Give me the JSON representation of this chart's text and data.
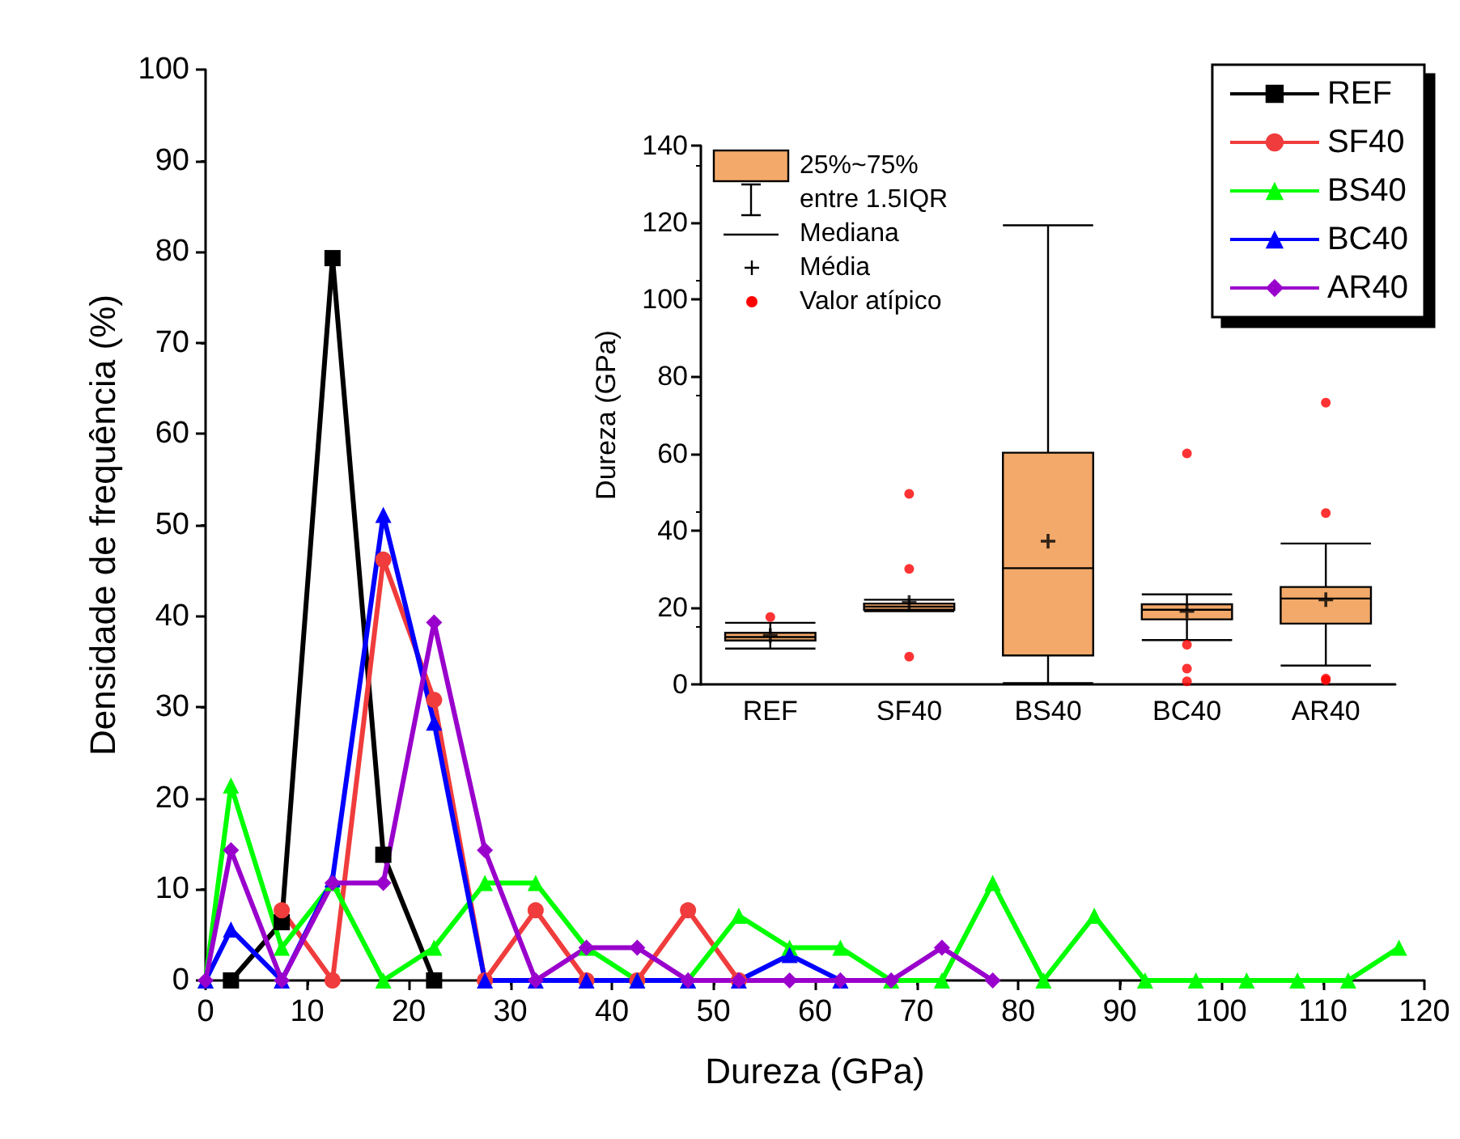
{
  "chart_data": [
    {
      "type": "line",
      "xlabel": "Dureza (GPa)",
      "ylabel": "Densidade de frequência (%)",
      "xlim": [
        0,
        120
      ],
      "xticks": [
        0,
        10,
        20,
        30,
        40,
        50,
        60,
        70,
        80,
        90,
        100,
        110,
        120
      ],
      "ylim": [
        0,
        100
      ],
      "yticks": [
        0,
        10,
        20,
        30,
        40,
        50,
        60,
        70,
        80,
        90,
        100
      ],
      "legend": "top right",
      "series": [
        {
          "name": "REF",
          "color": "#000000",
          "marker": "square",
          "x": [
            2.5,
            7.5,
            12.5,
            17.5,
            22.5
          ],
          "values": [
            0,
            6.4,
            79.3,
            13.8,
            0
          ]
        },
        {
          "name": "SF40",
          "color": "#f03c3c",
          "marker": "circle",
          "x": [
            7.5,
            12.5,
            17.5,
            22.5,
            27.5,
            32.5,
            37.5,
            42.5,
            47.5,
            52.5
          ],
          "values": [
            7.7,
            0,
            46.2,
            30.8,
            0,
            7.7,
            0,
            0,
            7.7,
            0
          ]
        },
        {
          "name": "BS40",
          "color": "#00ff00",
          "marker": "triangle",
          "x": [
            0,
            2.5,
            7.5,
            12.5,
            17.5,
            22.5,
            27.5,
            32.5,
            37.5,
            42.5,
            47.5,
            52.5,
            57.5,
            62.5,
            67.5,
            72.5,
            77.5,
            82.5,
            87.5,
            92.5,
            97.5,
            102.5,
            107.5,
            112.5,
            117.5
          ],
          "values": [
            0,
            21.4,
            3.6,
            10.7,
            0,
            3.6,
            10.7,
            10.7,
            3.6,
            0,
            0,
            7.1,
            3.6,
            3.6,
            0,
            0,
            10.7,
            0,
            7.1,
            0,
            0,
            0,
            0,
            0,
            3.6
          ]
        },
        {
          "name": "BC40",
          "color": "#0000ff",
          "marker": "triangle",
          "x": [
            0,
            2.5,
            7.5,
            12.5,
            17.5,
            22.5,
            27.5,
            32.5,
            37.5,
            42.5,
            47.5,
            52.5,
            57.5,
            62.5
          ],
          "values": [
            0,
            5.6,
            0,
            11.1,
            51.1,
            28.3,
            0,
            0,
            0,
            0,
            0,
            0,
            2.8,
            0
          ]
        },
        {
          "name": "AR40",
          "color": "#9900cc",
          "marker": "diamond",
          "x": [
            0,
            2.5,
            7.5,
            12.5,
            17.5,
            22.5,
            27.5,
            32.5,
            37.5,
            42.5,
            47.5,
            52.5,
            57.5,
            62.5,
            67.5,
            72.5,
            77.5
          ],
          "values": [
            0,
            14.3,
            0,
            10.7,
            10.7,
            39.3,
            14.3,
            0,
            3.6,
            3.6,
            0,
            0,
            0,
            0,
            0,
            3.6,
            0
          ]
        }
      ]
    },
    {
      "type": "box",
      "ylabel": "Dureza (GPa)",
      "categories": [
        "REF",
        "SF40",
        "BS40",
        "BC40",
        "AR40"
      ],
      "ylim": [
        0,
        140
      ],
      "yticks": [
        0,
        20,
        40,
        60,
        80,
        100,
        120,
        140
      ],
      "annotations": [
        "25%~75%",
        "entre 1.5IQR",
        "Mediana",
        "Média",
        "Valor atípico"
      ],
      "series": [
        {
          "color": "#f3a96a",
          "boxes": [
            {
              "low": 9.3,
              "q1": 11.4,
              "median": 12.3,
              "q3": 13.4,
              "high": 16,
              "mean": 12.7,
              "outliers": [
                17.5
              ]
            },
            {
              "low": 19,
              "q1": 19.4,
              "median": 20.2,
              "q3": 21,
              "high": 22,
              "mean": 21.3,
              "outliers": [
                49.5,
                30,
                7.2
              ]
            },
            {
              "low": 0.3,
              "q1": 7.5,
              "median": 30.2,
              "q3": 60.2,
              "high": 119.3,
              "mean": 37.2
            },
            {
              "low": 11.5,
              "q1": 16.9,
              "median": 19.4,
              "q3": 20.8,
              "high": 23.4,
              "mean": 19,
              "outliers": [
                60,
                10.3,
                4.1,
                0.8
              ]
            },
            {
              "low": 4.9,
              "q1": 15.8,
              "median": 22.3,
              "q3": 25.3,
              "high": 36.6,
              "mean": 22,
              "outliers": [
                73.2,
                44.5,
                1.5,
                1.1
              ]
            }
          ]
        }
      ]
    }
  ]
}
